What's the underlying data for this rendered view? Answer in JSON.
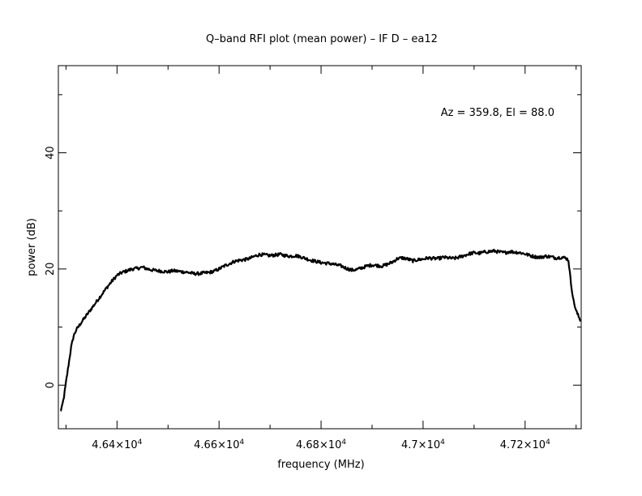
{
  "chart_data": {
    "type": "line",
    "title": "Q–band RFI plot (mean power) – IF D – ea12",
    "xlabel": "frequency (MHz)",
    "ylabel": "power (dB)",
    "annotation": "Az = 359.8, El = 88.0",
    "xlim": [
      46285,
      47310
    ],
    "ylim": [
      -7.5,
      55
    ],
    "grid": false,
    "legend": "none",
    "line_color": "#000000",
    "x_ticks": [
      {
        "value": 46400,
        "mantissa": "4.64",
        "exponent": "4"
      },
      {
        "value": 46600,
        "mantissa": "4.66",
        "exponent": "4"
      },
      {
        "value": 46800,
        "mantissa": "4.68",
        "exponent": "4"
      },
      {
        "value": 47000,
        "mantissa": "4.7",
        "exponent": "4"
      },
      {
        "value": 47200,
        "mantissa": "4.72",
        "exponent": "4"
      }
    ],
    "x_minor_ticks": [
      46300,
      46500,
      46700,
      46900,
      47100,
      47300
    ],
    "y_ticks": [
      {
        "value": 0,
        "label": "0"
      },
      {
        "value": 20,
        "label": "20"
      },
      {
        "value": 40,
        "label": "40"
      }
    ],
    "y_minor_ticks": [
      10,
      30,
      50
    ],
    "series": [
      {
        "x": [
          46289,
          46292,
          46296,
          46300,
          46305,
          46310,
          46315,
          46320,
          46330,
          46340,
          46350,
          46360,
          46370,
          46380,
          46390,
          46400,
          46410,
          46420,
          46430,
          46440,
          46450,
          46460,
          46470,
          46480,
          46490,
          46500,
          46510,
          46520,
          46530,
          46540,
          46550,
          46560,
          46570,
          46580,
          46590,
          46600,
          46610,
          46620,
          46630,
          46640,
          46650,
          46660,
          46670,
          46680,
          46690,
          46700,
          46710,
          46720,
          46730,
          46740,
          46750,
          46760,
          46770,
          46780,
          46790,
          46800,
          46810,
          46820,
          46830,
          46840,
          46850,
          46860,
          46870,
          46880,
          46890,
          46900,
          46910,
          46920,
          46930,
          46940,
          46950,
          46960,
          46970,
          46980,
          46990,
          47000,
          47010,
          47020,
          47030,
          47040,
          47050,
          47060,
          47070,
          47080,
          47090,
          47100,
          47110,
          47120,
          47130,
          47140,
          47150,
          47160,
          47170,
          47180,
          47190,
          47200,
          47210,
          47220,
          47230,
          47240,
          47250,
          47260,
          47270,
          47280,
          47285,
          47290,
          47295,
          47300,
          47305,
          47309
        ],
        "y": [
          -4.5,
          -3.8,
          -2.0,
          0.5,
          3.5,
          6.5,
          8.5,
          9.5,
          10.8,
          12.0,
          13.2,
          14.4,
          15.6,
          16.8,
          17.9,
          18.9,
          19.4,
          19.7,
          20.0,
          20.1,
          20.3,
          20.0,
          19.8,
          19.7,
          19.6,
          19.5,
          19.7,
          19.6,
          19.5,
          19.4,
          19.2,
          19.2,
          19.3,
          19.4,
          19.6,
          20.0,
          20.5,
          20.9,
          21.3,
          21.5,
          21.6,
          21.8,
          22.2,
          22.5,
          22.4,
          22.3,
          22.4,
          22.5,
          22.3,
          22.2,
          22.3,
          22.1,
          21.8,
          21.5,
          21.3,
          21.1,
          21.0,
          20.9,
          20.7,
          20.5,
          20.1,
          19.8,
          19.9,
          20.2,
          20.5,
          20.7,
          20.6,
          20.5,
          20.8,
          21.2,
          21.8,
          21.9,
          21.7,
          21.4,
          21.6,
          21.7,
          21.9,
          21.8,
          21.8,
          22.0,
          21.9,
          21.8,
          22.0,
          22.3,
          22.6,
          22.8,
          22.7,
          22.9,
          23.0,
          23.1,
          22.9,
          22.8,
          23.0,
          22.9,
          22.8,
          22.6,
          22.3,
          22.1,
          22.0,
          22.2,
          22.1,
          21.9,
          22.0,
          21.9,
          21.5,
          17.5,
          14.5,
          12.8,
          11.8,
          11.0
        ]
      }
    ]
  }
}
